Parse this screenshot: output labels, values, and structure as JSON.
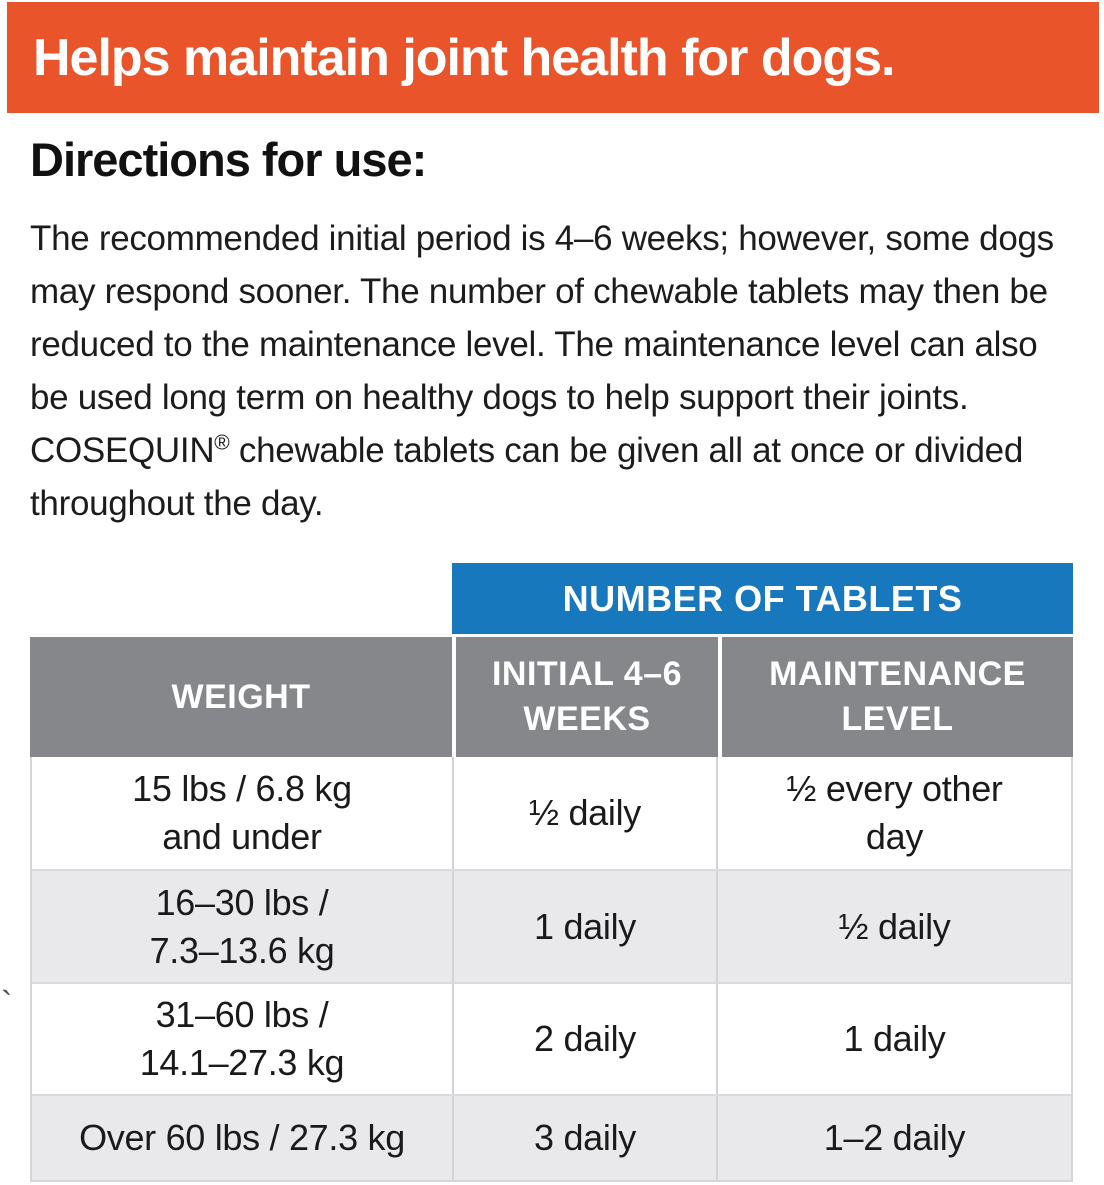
{
  "banner": {
    "text": "Helps maintain joint health for dogs.",
    "bg_color": "#E9542B",
    "text_color": "#FFFFFF"
  },
  "directions": {
    "heading": "Directions for use:",
    "body_part1": "The recommended initial period is 4–6 weeks; however, some dogs may respond sooner. The number of chewable tablets may then be reduced to the maintenance level. The maintenance level can also be used long term on healthy dogs to help support their joints. COSEQUIN",
    "trademark": "®",
    "body_part2": " chewable tablets can be given all at once or divided throughout the day."
  },
  "dosage_table": {
    "group_header": "NUMBER OF TABLETS",
    "columns": {
      "weight": [
        "WEIGHT"
      ],
      "initial": [
        "INITIAL 4–6",
        "WEEKS"
      ],
      "maintenance": [
        "MAINTENANCE",
        "LEVEL"
      ]
    },
    "rows": [
      {
        "weight": [
          "15 lbs / 6.8 kg",
          "and under"
        ],
        "initial": "½ daily",
        "maintenance": [
          "½ every other",
          "day"
        ]
      },
      {
        "weight": [
          "16–30 lbs /",
          "7.3–13.6 kg"
        ],
        "initial": "1 daily",
        "maintenance": "½ daily"
      },
      {
        "weight": [
          "31–60 lbs /",
          "14.1–27.3 kg"
        ],
        "initial": "2 daily",
        "maintenance": "1 daily"
      },
      {
        "weight": [
          "Over 60 lbs / 27.3 kg"
        ],
        "initial": "3 daily",
        "maintenance": "1–2 daily"
      }
    ],
    "colors": {
      "group_header_bg": "#1878BE",
      "header_bg": "#85878A",
      "header_text": "#FFFFFF",
      "row_alt_bg": "#E9E9EB",
      "border": "#D3D3D6"
    }
  },
  "stray_mark": "`"
}
